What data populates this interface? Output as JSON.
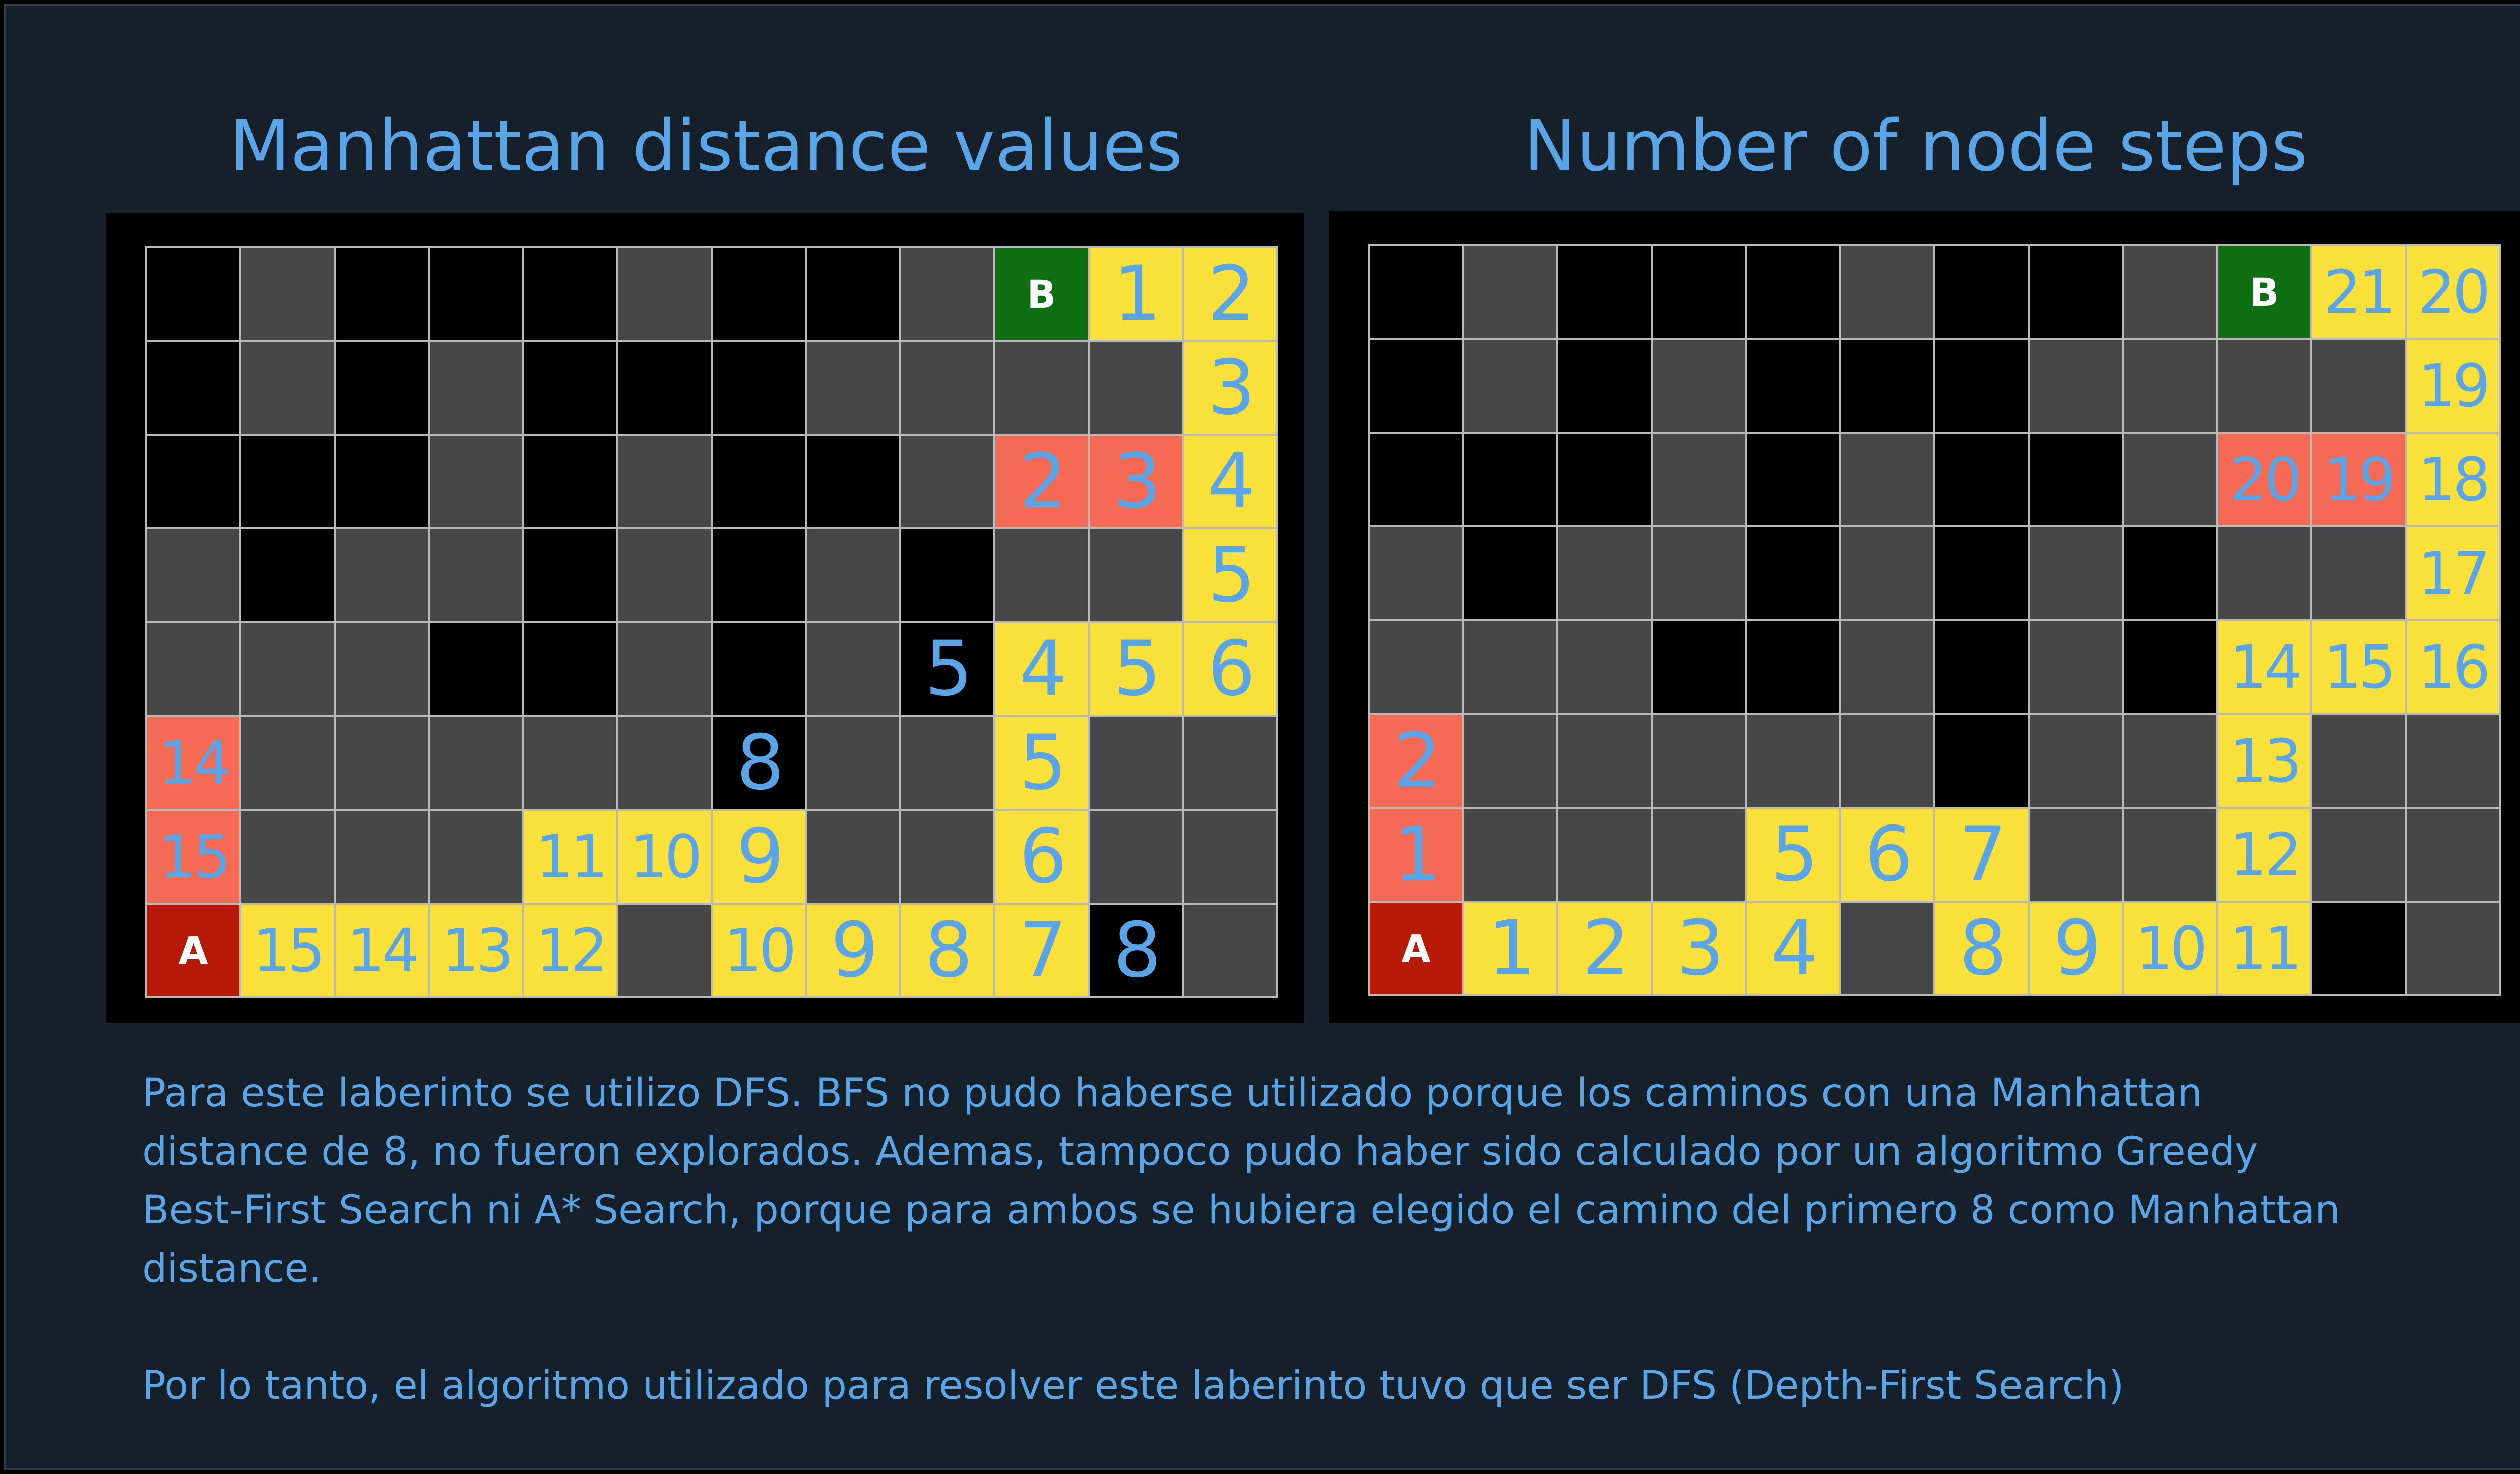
{
  "titles": {
    "left": "Manhattan distance values",
    "right": "Number of node steps"
  },
  "colors": {
    "background": "#16202b",
    "title_text": "#5aa5e8",
    "wall": "#000000",
    "open": "#474747",
    "path": "#f9e03a",
    "explored": "#f46a55",
    "start": "#b81a0a",
    "goal": "#0e6e12",
    "cell_text": "#5aa5e8"
  },
  "legend_codes": {
    "W": "wall",
    "O": "open",
    "P": "path",
    "E": "explored",
    "S": "start",
    "G": "goal"
  },
  "mazes": {
    "left": {
      "rows": [
        [
          [
            "W",
            ""
          ],
          [
            "O",
            ""
          ],
          [
            "W",
            ""
          ],
          [
            "W",
            ""
          ],
          [
            "W",
            ""
          ],
          [
            "O",
            ""
          ],
          [
            "W",
            ""
          ],
          [
            "W",
            ""
          ],
          [
            "O",
            ""
          ],
          [
            "G",
            "B"
          ],
          [
            "P",
            "1"
          ],
          [
            "P",
            "2"
          ]
        ],
        [
          [
            "W",
            ""
          ],
          [
            "O",
            ""
          ],
          [
            "W",
            ""
          ],
          [
            "O",
            ""
          ],
          [
            "W",
            ""
          ],
          [
            "W",
            ""
          ],
          [
            "W",
            ""
          ],
          [
            "O",
            ""
          ],
          [
            "O",
            ""
          ],
          [
            "O",
            ""
          ],
          [
            "O",
            ""
          ],
          [
            "P",
            "3"
          ]
        ],
        [
          [
            "W",
            ""
          ],
          [
            "W",
            ""
          ],
          [
            "W",
            ""
          ],
          [
            "O",
            ""
          ],
          [
            "W",
            ""
          ],
          [
            "O",
            ""
          ],
          [
            "W",
            ""
          ],
          [
            "W",
            ""
          ],
          [
            "O",
            ""
          ],
          [
            "E",
            "2"
          ],
          [
            "E",
            "3"
          ],
          [
            "P",
            "4"
          ]
        ],
        [
          [
            "O",
            ""
          ],
          [
            "W",
            ""
          ],
          [
            "O",
            ""
          ],
          [
            "O",
            ""
          ],
          [
            "W",
            ""
          ],
          [
            "O",
            ""
          ],
          [
            "W",
            ""
          ],
          [
            "O",
            ""
          ],
          [
            "W",
            ""
          ],
          [
            "O",
            ""
          ],
          [
            "O",
            ""
          ],
          [
            "P",
            "5"
          ]
        ],
        [
          [
            "O",
            ""
          ],
          [
            "O",
            ""
          ],
          [
            "O",
            ""
          ],
          [
            "W",
            ""
          ],
          [
            "W",
            ""
          ],
          [
            "O",
            ""
          ],
          [
            "W",
            ""
          ],
          [
            "O",
            ""
          ],
          [
            "W",
            "5"
          ],
          [
            "P",
            "4"
          ],
          [
            "P",
            "5"
          ],
          [
            "P",
            "6"
          ]
        ],
        [
          [
            "E",
            "14"
          ],
          [
            "O",
            ""
          ],
          [
            "O",
            ""
          ],
          [
            "O",
            ""
          ],
          [
            "O",
            ""
          ],
          [
            "O",
            ""
          ],
          [
            "W",
            "8"
          ],
          [
            "O",
            ""
          ],
          [
            "O",
            ""
          ],
          [
            "P",
            "5"
          ],
          [
            "O",
            ""
          ],
          [
            "O",
            ""
          ]
        ],
        [
          [
            "E",
            "15"
          ],
          [
            "O",
            ""
          ],
          [
            "O",
            ""
          ],
          [
            "O",
            ""
          ],
          [
            "P",
            "11"
          ],
          [
            "P",
            "10"
          ],
          [
            "P",
            "9"
          ],
          [
            "O",
            ""
          ],
          [
            "O",
            ""
          ],
          [
            "P",
            "6"
          ],
          [
            "O",
            ""
          ],
          [
            "O",
            ""
          ]
        ],
        [
          [
            "S",
            "A"
          ],
          [
            "P",
            "15"
          ],
          [
            "P",
            "14"
          ],
          [
            "P",
            "13"
          ],
          [
            "P",
            "12"
          ],
          [
            "O",
            ""
          ],
          [
            "P",
            "10"
          ],
          [
            "P",
            "9"
          ],
          [
            "P",
            "8"
          ],
          [
            "P",
            "7"
          ],
          [
            "W",
            "8"
          ],
          [
            "O",
            ""
          ]
        ]
      ]
    },
    "right": {
      "rows": [
        [
          [
            "W",
            ""
          ],
          [
            "O",
            ""
          ],
          [
            "W",
            ""
          ],
          [
            "W",
            ""
          ],
          [
            "W",
            ""
          ],
          [
            "O",
            ""
          ],
          [
            "W",
            ""
          ],
          [
            "W",
            ""
          ],
          [
            "O",
            ""
          ],
          [
            "G",
            "B"
          ],
          [
            "P",
            "21"
          ],
          [
            "P",
            "20"
          ]
        ],
        [
          [
            "W",
            ""
          ],
          [
            "O",
            ""
          ],
          [
            "W",
            ""
          ],
          [
            "O",
            ""
          ],
          [
            "W",
            ""
          ],
          [
            "W",
            ""
          ],
          [
            "W",
            ""
          ],
          [
            "O",
            ""
          ],
          [
            "O",
            ""
          ],
          [
            "O",
            ""
          ],
          [
            "O",
            ""
          ],
          [
            "P",
            "19"
          ]
        ],
        [
          [
            "W",
            ""
          ],
          [
            "W",
            ""
          ],
          [
            "W",
            ""
          ],
          [
            "O",
            ""
          ],
          [
            "W",
            ""
          ],
          [
            "O",
            ""
          ],
          [
            "W",
            ""
          ],
          [
            "W",
            ""
          ],
          [
            "O",
            ""
          ],
          [
            "E",
            "20"
          ],
          [
            "E",
            "19"
          ],
          [
            "P",
            "18"
          ]
        ],
        [
          [
            "O",
            ""
          ],
          [
            "W",
            ""
          ],
          [
            "O",
            ""
          ],
          [
            "O",
            ""
          ],
          [
            "W",
            ""
          ],
          [
            "O",
            ""
          ],
          [
            "W",
            ""
          ],
          [
            "O",
            ""
          ],
          [
            "W",
            ""
          ],
          [
            "O",
            ""
          ],
          [
            "O",
            ""
          ],
          [
            "P",
            "17"
          ]
        ],
        [
          [
            "O",
            ""
          ],
          [
            "O",
            ""
          ],
          [
            "O",
            ""
          ],
          [
            "W",
            ""
          ],
          [
            "W",
            ""
          ],
          [
            "O",
            ""
          ],
          [
            "W",
            ""
          ],
          [
            "O",
            ""
          ],
          [
            "W",
            ""
          ],
          [
            "P",
            "14"
          ],
          [
            "P",
            "15"
          ],
          [
            "P",
            "16"
          ]
        ],
        [
          [
            "E",
            "2"
          ],
          [
            "O",
            ""
          ],
          [
            "O",
            ""
          ],
          [
            "O",
            ""
          ],
          [
            "O",
            ""
          ],
          [
            "O",
            ""
          ],
          [
            "W",
            ""
          ],
          [
            "O",
            ""
          ],
          [
            "O",
            ""
          ],
          [
            "P",
            "13"
          ],
          [
            "O",
            ""
          ],
          [
            "O",
            ""
          ]
        ],
        [
          [
            "E",
            "1"
          ],
          [
            "O",
            ""
          ],
          [
            "O",
            ""
          ],
          [
            "O",
            ""
          ],
          [
            "P",
            "5"
          ],
          [
            "P",
            "6"
          ],
          [
            "P",
            "7"
          ],
          [
            "O",
            ""
          ],
          [
            "O",
            ""
          ],
          [
            "P",
            "12"
          ],
          [
            "O",
            ""
          ],
          [
            "O",
            ""
          ]
        ],
        [
          [
            "S",
            "A"
          ],
          [
            "P",
            "1"
          ],
          [
            "P",
            "2"
          ],
          [
            "P",
            "3"
          ],
          [
            "P",
            "4"
          ],
          [
            "O",
            ""
          ],
          [
            "P",
            "8"
          ],
          [
            "P",
            "9"
          ],
          [
            "P",
            "10"
          ],
          [
            "P",
            "11"
          ],
          [
            "W",
            ""
          ],
          [
            "O",
            ""
          ]
        ]
      ]
    }
  },
  "description": {
    "paragraph": "Para este laberinto se utilizo DFS. BFS no pudo haberse utilizado porque los caminos con una Manhattan distance de 8, no fueron explorados. Ademas, tampoco pudo haber sido calculado por un algoritmo Greedy Best-First Search ni A* Search, porque para ambos se hubiera elegido el camino del primero 8 como Manhattan distance.",
    "conclusion": "Por lo tanto, el algoritmo utilizado para resolver este laberinto tuvo que ser DFS (Depth-First Search)"
  }
}
